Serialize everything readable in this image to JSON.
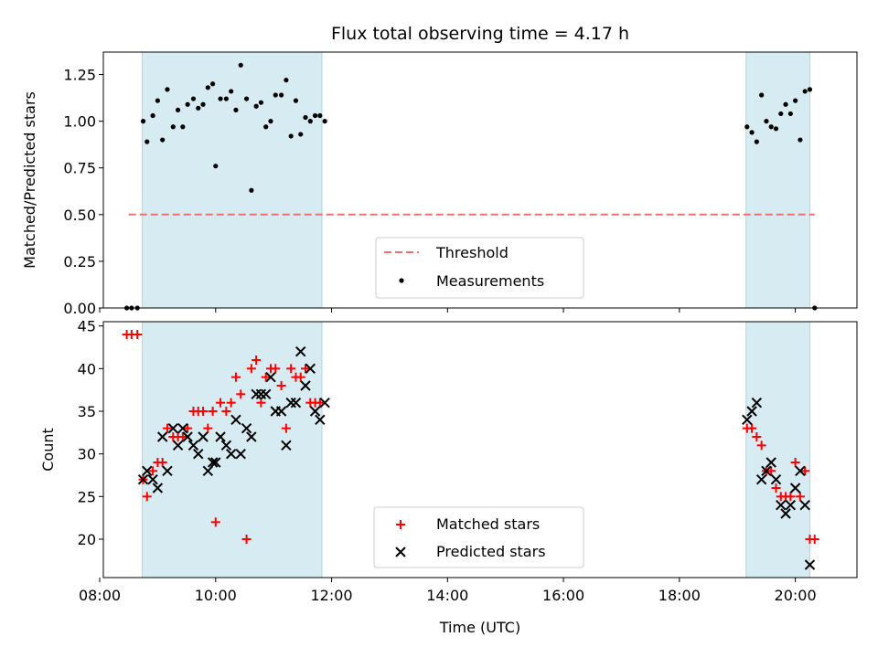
{
  "chart_data": [
    {
      "type": "scatter",
      "title": "Flux total observing time = 4.17 h",
      "xlabel": "",
      "ylabel": "Matched/Predicted stars",
      "xlim": [
        "08:00",
        "21:00"
      ],
      "ylim": [
        0,
        1.37
      ],
      "yticks": [
        "0.00",
        "0.25",
        "0.50",
        "0.75",
        "1.00",
        "1.25"
      ],
      "grid": false,
      "legend_position": "lower-center",
      "observing_windows": [
        [
          "08:44",
          "11:50"
        ],
        [
          "19:09",
          "20:15"
        ]
      ],
      "threshold": {
        "name": "Threshold",
        "value": 0.5,
        "x_range": [
          "08:30",
          "20:20"
        ],
        "color": "#f07070"
      },
      "series": [
        {
          "name": "Measurements",
          "color": "#000000",
          "points": [
            [
              "08:28",
              0.0
            ],
            [
              "08:33",
              0.0
            ],
            [
              "08:39",
              0.0
            ],
            [
              "08:45",
              1.0
            ],
            [
              "08:49",
              0.89
            ],
            [
              "08:55",
              1.03
            ],
            [
              "09:00",
              1.11
            ],
            [
              "09:05",
              0.9
            ],
            [
              "09:10",
              1.17
            ],
            [
              "09:16",
              0.97
            ],
            [
              "09:21",
              1.06
            ],
            [
              "09:26",
              0.97
            ],
            [
              "09:31",
              1.09
            ],
            [
              "09:37",
              1.12
            ],
            [
              "09:42",
              1.07
            ],
            [
              "09:47",
              1.09
            ],
            [
              "09:52",
              1.18
            ],
            [
              "09:57",
              1.2
            ],
            [
              "10:00",
              0.76
            ],
            [
              "10:05",
              1.12
            ],
            [
              "10:11",
              1.12
            ],
            [
              "10:16",
              1.16
            ],
            [
              "10:21",
              1.06
            ],
            [
              "10:26",
              1.3
            ],
            [
              "10:32",
              1.12
            ],
            [
              "10:37",
              0.63
            ],
            [
              "10:42",
              1.08
            ],
            [
              "10:47",
              1.1
            ],
            [
              "10:52",
              0.97
            ],
            [
              "10:57",
              1.0
            ],
            [
              "11:02",
              1.14
            ],
            [
              "11:08",
              1.14
            ],
            [
              "11:13",
              1.22
            ],
            [
              "11:18",
              0.92
            ],
            [
              "11:23",
              1.11
            ],
            [
              "11:28",
              0.93
            ],
            [
              "11:33",
              1.02
            ],
            [
              "11:38",
              1.0
            ],
            [
              "11:43",
              1.03
            ],
            [
              "11:48",
              1.03
            ],
            [
              "11:53",
              1.0
            ],
            [
              "19:10",
              0.97
            ],
            [
              "19:15",
              0.94
            ],
            [
              "19:20",
              0.89
            ],
            [
              "19:25",
              1.14
            ],
            [
              "19:30",
              1.0
            ],
            [
              "19:35",
              0.97
            ],
            [
              "19:40",
              0.96
            ],
            [
              "19:45",
              1.04
            ],
            [
              "19:50",
              1.09
            ],
            [
              "19:55",
              1.04
            ],
            [
              "20:00",
              1.11
            ],
            [
              "20:05",
              0.9
            ],
            [
              "20:10",
              1.16
            ],
            [
              "20:15",
              1.17
            ],
            [
              "20:20",
              0.0
            ]
          ]
        }
      ]
    },
    {
      "type": "scatter",
      "title": "",
      "xlabel": "Time (UTC)",
      "ylabel": "Count",
      "xlim": [
        "08:00",
        "21:00"
      ],
      "ylim": [
        15.5,
        45.5
      ],
      "yticks": [
        "20",
        "25",
        "30",
        "35",
        "40",
        "45"
      ],
      "xticks": [
        "08:00",
        "10:00",
        "12:00",
        "14:00",
        "16:00",
        "18:00",
        "20:00"
      ],
      "grid": false,
      "legend_position": "lower-center",
      "observing_windows": [
        [
          "08:44",
          "11:50"
        ],
        [
          "19:09",
          "20:15"
        ]
      ],
      "series": [
        {
          "name": "Matched stars",
          "marker": "plus",
          "color": "#ff0000",
          "points": [
            [
              "08:28",
              44
            ],
            [
              "08:33",
              44
            ],
            [
              "08:39",
              44
            ],
            [
              "08:45",
              27
            ],
            [
              "08:49",
              25
            ],
            [
              "08:55",
              28
            ],
            [
              "09:00",
              29
            ],
            [
              "09:05",
              29
            ],
            [
              "09:10",
              33
            ],
            [
              "09:16",
              32
            ],
            [
              "09:21",
              32
            ],
            [
              "09:26",
              32
            ],
            [
              "09:31",
              33
            ],
            [
              "09:37",
              35
            ],
            [
              "09:42",
              35
            ],
            [
              "09:47",
              35
            ],
            [
              "09:52",
              33
            ],
            [
              "09:57",
              35
            ],
            [
              "10:00",
              22
            ],
            [
              "10:05",
              36
            ],
            [
              "10:11",
              35
            ],
            [
              "10:16",
              36
            ],
            [
              "10:21",
              39
            ],
            [
              "10:26",
              37
            ],
            [
              "10:32",
              20
            ],
            [
              "10:37",
              40
            ],
            [
              "10:42",
              41
            ],
            [
              "10:47",
              36
            ],
            [
              "10:52",
              39
            ],
            [
              "10:57",
              40
            ],
            [
              "11:02",
              40
            ],
            [
              "11:08",
              38
            ],
            [
              "11:13",
              33
            ],
            [
              "11:18",
              40
            ],
            [
              "11:23",
              39
            ],
            [
              "11:28",
              39
            ],
            [
              "11:33",
              40
            ],
            [
              "11:38",
              36
            ],
            [
              "11:43",
              36
            ],
            [
              "11:48",
              36
            ],
            [
              "19:10",
              33
            ],
            [
              "19:15",
              33
            ],
            [
              "19:20",
              32
            ],
            [
              "19:25",
              31
            ],
            [
              "19:30",
              28
            ],
            [
              "19:35",
              28
            ],
            [
              "19:40",
              26
            ],
            [
              "19:45",
              25
            ],
            [
              "19:50",
              25
            ],
            [
              "19:55",
              25
            ],
            [
              "20:00",
              29
            ],
            [
              "20:05",
              25
            ],
            [
              "20:10",
              28
            ],
            [
              "20:15",
              20
            ],
            [
              "20:20",
              20
            ]
          ]
        },
        {
          "name": "Predicted stars",
          "marker": "x",
          "color": "#000000",
          "points": [
            [
              "08:45",
              27
            ],
            [
              "08:49",
              28
            ],
            [
              "08:55",
              27
            ],
            [
              "09:00",
              26
            ],
            [
              "09:05",
              32
            ],
            [
              "09:10",
              28
            ],
            [
              "09:16",
              33
            ],
            [
              "09:21",
              31
            ],
            [
              "09:26",
              33
            ],
            [
              "09:31",
              32
            ],
            [
              "09:37",
              31
            ],
            [
              "09:42",
              30
            ],
            [
              "09:47",
              32
            ],
            [
              "09:52",
              28
            ],
            [
              "09:57",
              29
            ],
            [
              "10:00",
              29
            ],
            [
              "10:05",
              32
            ],
            [
              "10:11",
              31
            ],
            [
              "10:16",
              30
            ],
            [
              "10:21",
              34
            ],
            [
              "10:26",
              30
            ],
            [
              "10:32",
              33
            ],
            [
              "10:37",
              32
            ],
            [
              "10:42",
              37
            ],
            [
              "10:47",
              37
            ],
            [
              "10:52",
              37
            ],
            [
              "10:57",
              39
            ],
            [
              "11:02",
              35
            ],
            [
              "11:08",
              35
            ],
            [
              "11:13",
              31
            ],
            [
              "11:18",
              36
            ],
            [
              "11:23",
              36
            ],
            [
              "11:28",
              42
            ],
            [
              "11:33",
              38
            ],
            [
              "11:38",
              40
            ],
            [
              "11:43",
              35
            ],
            [
              "11:48",
              34
            ],
            [
              "11:53",
              36
            ],
            [
              "19:10",
              34
            ],
            [
              "19:15",
              35
            ],
            [
              "19:20",
              36
            ],
            [
              "19:25",
              27
            ],
            [
              "19:30",
              28
            ],
            [
              "19:35",
              29
            ],
            [
              "19:40",
              27
            ],
            [
              "19:45",
              24
            ],
            [
              "19:50",
              23
            ],
            [
              "19:55",
              24
            ],
            [
              "20:00",
              26
            ],
            [
              "20:05",
              28
            ],
            [
              "20:10",
              24
            ],
            [
              "20:15",
              17
            ]
          ]
        }
      ]
    }
  ],
  "colors": {
    "window_fill": "#add8e6",
    "threshold": "#f07070",
    "matched": "#ff0000",
    "predicted": "#000000"
  }
}
